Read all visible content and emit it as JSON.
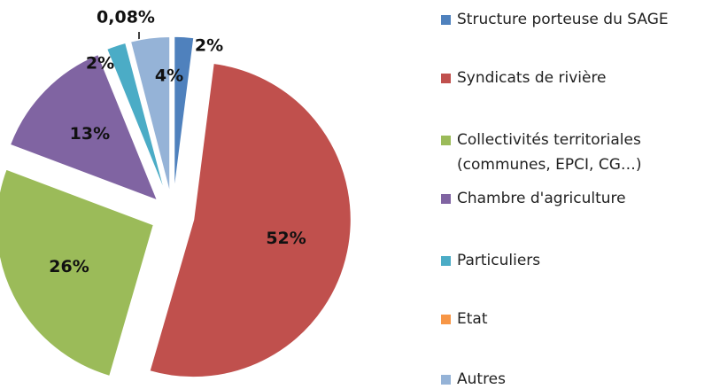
{
  "chart_data": {
    "type": "pie",
    "categories": [
      "Structure porteuse du SAGE",
      "Syndicats de rivière",
      "Collectivités territoriales (communes, EPCI, CG…)",
      "Chambre d'agriculture",
      "Particuliers",
      "Etat",
      "Autres"
    ],
    "values": [
      2,
      52,
      26,
      13,
      2,
      0.08,
      4
    ],
    "value_labels": [
      "2%",
      "52%",
      "26%",
      "13%",
      "2%",
      "0,08%",
      "4%"
    ],
    "colors": [
      "#4f81bd",
      "#c0504d",
      "#9bbb59",
      "#8064a2",
      "#4bacc6",
      "#f79646",
      "#95b3d7"
    ],
    "legend": "right"
  }
}
